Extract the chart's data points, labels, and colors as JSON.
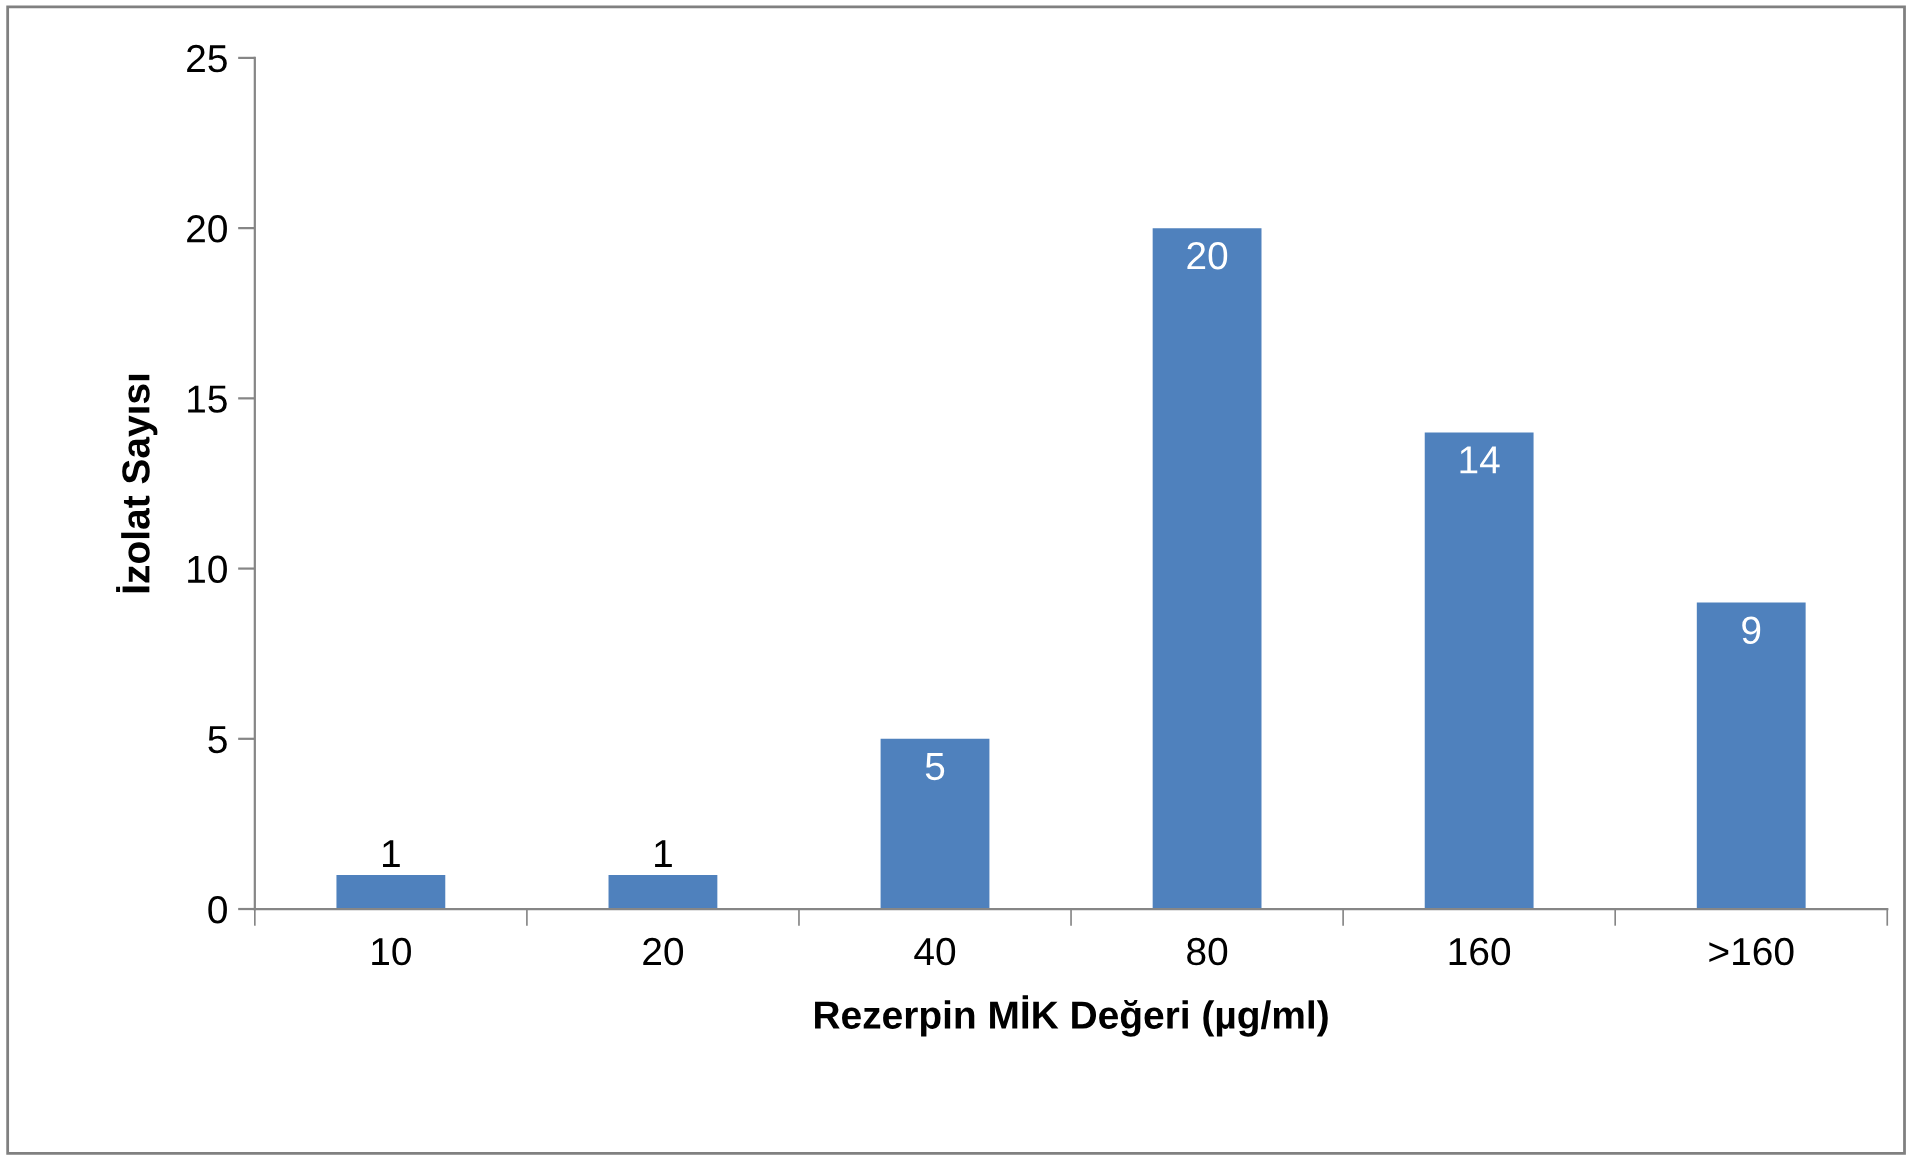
{
  "chart_data": {
    "type": "bar",
    "xlabel": "Rezerpin MİK Değeri (µg/ml)",
    "ylabel": "İzolat Sayısı",
    "categories": [
      "10",
      "20",
      "40",
      "80",
      "160",
      ">160"
    ],
    "values": [
      1,
      1,
      5,
      20,
      14,
      9
    ],
    "color": "#4f81bd",
    "ylim": [
      0,
      25
    ],
    "yticks": [
      0,
      5,
      10,
      15,
      20,
      25
    ],
    "grid": false,
    "data_labels": true
  }
}
